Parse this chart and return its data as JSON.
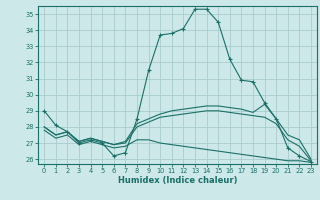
{
  "xlabel": "Humidex (Indice chaleur)",
  "bg_color": "#cce8e8",
  "grid_color": "#aacccc",
  "line_color": "#1a7068",
  "xlim": [
    -0.5,
    23.5
  ],
  "ylim": [
    25.7,
    35.5
  ],
  "xticks": [
    0,
    1,
    2,
    3,
    4,
    5,
    6,
    7,
    8,
    9,
    10,
    11,
    12,
    13,
    14,
    15,
    16,
    17,
    18,
    19,
    20,
    21,
    22,
    23
  ],
  "yticks": [
    26,
    27,
    28,
    29,
    30,
    31,
    32,
    33,
    34,
    35
  ],
  "line1_x": [
    0,
    1,
    2,
    3,
    4,
    5,
    6,
    7,
    8,
    9,
    10,
    11,
    12,
    13,
    14,
    15,
    16,
    17,
    18,
    19,
    20,
    21,
    22,
    23
  ],
  "line1_y": [
    29.0,
    28.1,
    27.7,
    27.0,
    27.2,
    27.0,
    26.2,
    26.4,
    28.5,
    31.5,
    33.7,
    33.8,
    34.1,
    35.3,
    35.3,
    34.5,
    32.2,
    30.9,
    30.8,
    29.5,
    28.5,
    26.7,
    26.2,
    25.85
  ],
  "line2_x": [
    0,
    1,
    2,
    3,
    4,
    5,
    6,
    7,
    8,
    9,
    10,
    11,
    12,
    13,
    14,
    15,
    16,
    17,
    18,
    19,
    20,
    21,
    22,
    23
  ],
  "line2_y": [
    28.0,
    27.5,
    27.7,
    27.1,
    27.3,
    27.1,
    26.9,
    27.1,
    28.2,
    28.5,
    28.8,
    29.0,
    29.1,
    29.2,
    29.3,
    29.3,
    29.2,
    29.1,
    28.9,
    29.4,
    28.5,
    27.5,
    27.2,
    26.0
  ],
  "line3_x": [
    0,
    1,
    2,
    3,
    4,
    5,
    6,
    7,
    8,
    9,
    10,
    11,
    12,
    13,
    14,
    15,
    16,
    17,
    18,
    19,
    20,
    21,
    22,
    23
  ],
  "line3_y": [
    28.0,
    27.5,
    27.7,
    27.1,
    27.3,
    27.1,
    26.9,
    27.0,
    28.0,
    28.3,
    28.6,
    28.7,
    28.8,
    28.9,
    29.0,
    29.0,
    28.9,
    28.8,
    28.7,
    28.6,
    28.2,
    27.2,
    26.8,
    25.9
  ],
  "line4_x": [
    0,
    1,
    2,
    3,
    4,
    5,
    6,
    7,
    8,
    9,
    10,
    11,
    12,
    13,
    14,
    15,
    16,
    17,
    18,
    19,
    20,
    21,
    22,
    23
  ],
  "line4_y": [
    27.8,
    27.3,
    27.5,
    26.9,
    27.1,
    26.9,
    26.7,
    26.8,
    27.2,
    27.2,
    27.0,
    26.9,
    26.8,
    26.7,
    26.6,
    26.5,
    26.4,
    26.3,
    26.2,
    26.1,
    26.0,
    25.9,
    25.9,
    25.8
  ]
}
